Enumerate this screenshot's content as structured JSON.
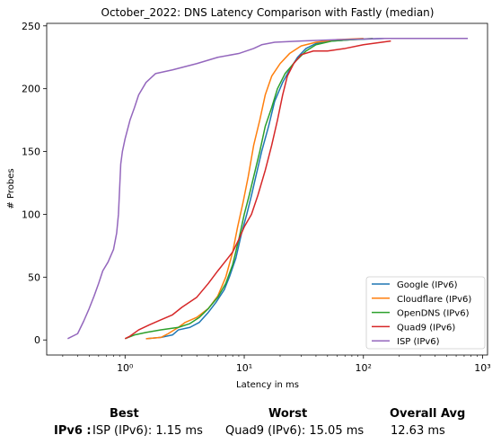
{
  "chart_data": {
    "type": "line",
    "title": "October_2022: DNS Latency Comparison with Fastly (median)",
    "xlabel": "Latency in ms",
    "ylabel": "# Probes",
    "xscale": "log",
    "xlim": [
      0.22,
      1100
    ],
    "ylim": [
      -12,
      252
    ],
    "xticks": [
      1,
      10,
      100,
      1000
    ],
    "xtick_labels": [
      "10⁰",
      "10¹",
      "10²",
      "10³"
    ],
    "yticks": [
      0,
      50,
      100,
      150,
      200,
      250
    ],
    "legend_position": "lower right",
    "series": [
      {
        "name": "Google (IPv6)",
        "color": "#1f77b4",
        "points": [
          [
            1.5,
            1
          ],
          [
            2.0,
            2
          ],
          [
            2.5,
            4
          ],
          [
            2.8,
            8
          ],
          [
            3.5,
            10
          ],
          [
            4.2,
            14
          ],
          [
            5.0,
            22
          ],
          [
            5.8,
            30
          ],
          [
            6.8,
            40
          ],
          [
            7.5,
            50
          ],
          [
            8.5,
            65
          ],
          [
            9.5,
            85
          ],
          [
            10.5,
            100
          ],
          [
            11.5,
            115
          ],
          [
            12.5,
            130
          ],
          [
            14,
            150
          ],
          [
            16,
            170
          ],
          [
            18,
            190
          ],
          [
            21,
            205
          ],
          [
            24,
            215
          ],
          [
            28,
            225
          ],
          [
            33,
            232
          ],
          [
            40,
            236
          ],
          [
            55,
            238
          ],
          [
            80,
            239
          ],
          [
            150,
            240
          ],
          [
            300,
            240
          ],
          [
            750,
            240
          ]
        ]
      },
      {
        "name": "Cloudflare (IPv6)",
        "color": "#ff7f0e",
        "points": [
          [
            1.5,
            1
          ],
          [
            2.0,
            2
          ],
          [
            2.3,
            5
          ],
          [
            2.8,
            10
          ],
          [
            3.2,
            14
          ],
          [
            4.0,
            18
          ],
          [
            5.0,
            25
          ],
          [
            6.0,
            35
          ],
          [
            7.0,
            50
          ],
          [
            8.0,
            70
          ],
          [
            8.8,
            90
          ],
          [
            9.8,
            110
          ],
          [
            10.8,
            130
          ],
          [
            12,
            155
          ],
          [
            13.5,
            175
          ],
          [
            15,
            195
          ],
          [
            17,
            210
          ],
          [
            20,
            220
          ],
          [
            24,
            228
          ],
          [
            30,
            234
          ],
          [
            40,
            237
          ],
          [
            60,
            239
          ],
          [
            100,
            240
          ]
        ]
      },
      {
        "name": "OpenDNS (IPv6)",
        "color": "#2ca02c",
        "points": [
          [
            1.0,
            1
          ],
          [
            1.2,
            4
          ],
          [
            1.5,
            6
          ],
          [
            2.0,
            8
          ],
          [
            2.8,
            10
          ],
          [
            3.5,
            13
          ],
          [
            4.2,
            18
          ],
          [
            5.0,
            25
          ],
          [
            6.0,
            34
          ],
          [
            7.0,
            45
          ],
          [
            8.0,
            60
          ],
          [
            9.0,
            80
          ],
          [
            10.0,
            100
          ],
          [
            11,
            115
          ],
          [
            12,
            130
          ],
          [
            13.5,
            150
          ],
          [
            15,
            170
          ],
          [
            17,
            185
          ],
          [
            19,
            200
          ],
          [
            22,
            212
          ],
          [
            27,
            222
          ],
          [
            33,
            230
          ],
          [
            40,
            235
          ],
          [
            55,
            238
          ],
          [
            80,
            239
          ],
          [
            120,
            240
          ]
        ]
      },
      {
        "name": "Quad9 (IPv6)",
        "color": "#d62728",
        "points": [
          [
            1.0,
            1
          ],
          [
            1.1,
            3
          ],
          [
            1.3,
            8
          ],
          [
            1.6,
            12
          ],
          [
            2.0,
            16
          ],
          [
            2.5,
            20
          ],
          [
            3.0,
            26
          ],
          [
            4.0,
            34
          ],
          [
            5.0,
            45
          ],
          [
            6.0,
            55
          ],
          [
            7.0,
            63
          ],
          [
            8.0,
            70
          ],
          [
            9.0,
            80
          ],
          [
            10.0,
            90
          ],
          [
            11.5,
            100
          ],
          [
            13,
            115
          ],
          [
            15,
            135
          ],
          [
            17,
            155
          ],
          [
            19,
            175
          ],
          [
            21,
            195
          ],
          [
            23,
            210
          ],
          [
            26,
            220
          ],
          [
            30,
            227
          ],
          [
            38,
            230
          ],
          [
            50,
            230
          ],
          [
            70,
            232
          ],
          [
            100,
            235
          ],
          [
            170,
            238
          ]
        ]
      },
      {
        "name": "ISP (IPv6)",
        "color": "#9467bd",
        "points": [
          [
            0.33,
            1
          ],
          [
            0.4,
            5
          ],
          [
            0.45,
            15
          ],
          [
            0.5,
            25
          ],
          [
            0.55,
            35
          ],
          [
            0.6,
            45
          ],
          [
            0.65,
            55
          ],
          [
            0.72,
            62
          ],
          [
            0.8,
            72
          ],
          [
            0.85,
            85
          ],
          [
            0.88,
            100
          ],
          [
            0.9,
            120
          ],
          [
            0.92,
            140
          ],
          [
            0.95,
            150
          ],
          [
            1.0,
            160
          ],
          [
            1.1,
            175
          ],
          [
            1.2,
            185
          ],
          [
            1.3,
            195
          ],
          [
            1.5,
            205
          ],
          [
            1.8,
            212
          ],
          [
            2.5,
            215
          ],
          [
            4.0,
            220
          ],
          [
            6,
            225
          ],
          [
            9,
            228
          ],
          [
            12,
            232
          ],
          [
            14,
            235
          ],
          [
            18,
            237
          ],
          [
            30,
            238
          ],
          [
            60,
            239
          ],
          [
            150,
            240
          ],
          [
            400,
            240
          ],
          [
            750,
            240
          ]
        ]
      }
    ]
  },
  "summary": {
    "best_header": "Best",
    "worst_header": "Worst",
    "avg_header": "Overall Avg",
    "row_label": "IPv6 :",
    "best_value": "ISP (IPv6): 1.15 ms",
    "worst_value": "Quad9 (IPv6): 15.05 ms",
    "avg_value": "12.63 ms"
  }
}
